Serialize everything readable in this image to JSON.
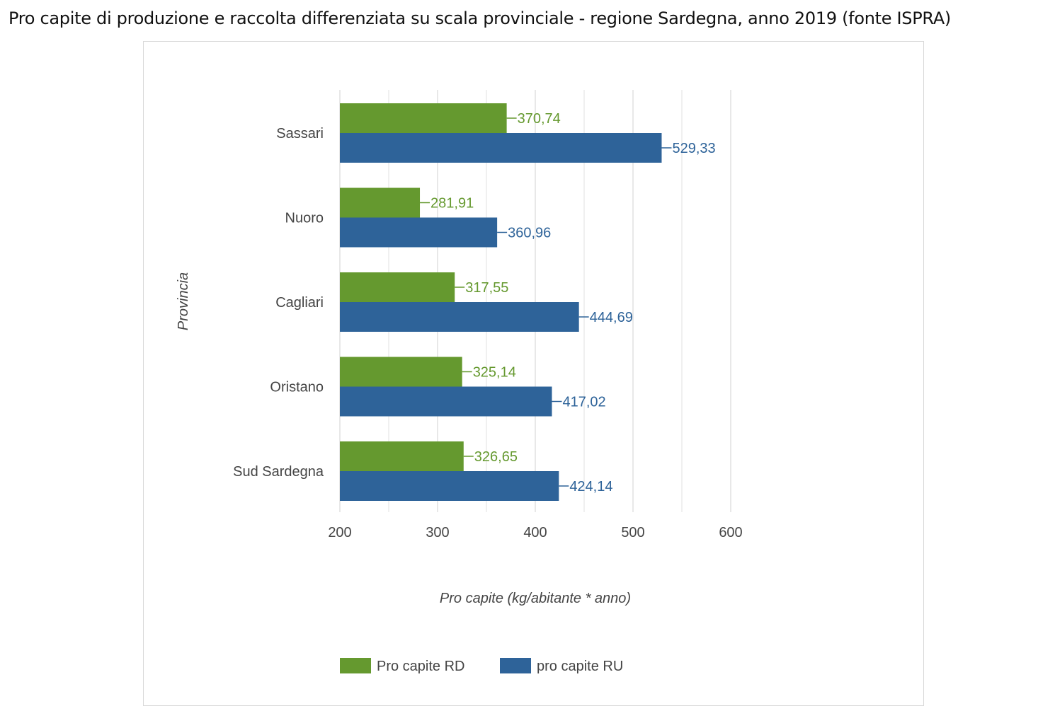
{
  "page_title": "Pro capite di produzione e raccolta differenziata su scala provinciale - regione Sardegna, anno 2019 (fonte ISPRA)",
  "colors": {
    "rd": "#65992f",
    "ru": "#2e6399",
    "grid": "#d9d9d9",
    "axis_text": "#444444"
  },
  "chart_data": {
    "type": "bar",
    "orientation": "horizontal",
    "categories": [
      "Sassari",
      "Nuoro",
      "Cagliari",
      "Oristano",
      "Sud Sardegna"
    ],
    "series": [
      {
        "name": "Pro capite RD",
        "color": "#65992f",
        "values": [
          370.74,
          281.91,
          317.55,
          325.14,
          326.65
        ],
        "labels": [
          "370,74",
          "281,91",
          "317,55",
          "325,14",
          "326,65"
        ]
      },
      {
        "name": "pro capite RU",
        "color": "#2e6399",
        "values": [
          529.33,
          360.96,
          444.69,
          417.02,
          424.14
        ],
        "labels": [
          "529,33",
          "360,96",
          "444,69",
          "417,02",
          "424,14"
        ]
      }
    ],
    "xlim": [
      200,
      600
    ],
    "xticks": [
      "200",
      "300",
      "400",
      "500",
      "600"
    ],
    "xlabel": "Pro capite (kg/abitante * anno)",
    "ylabel": "Provincia",
    "grid": true,
    "legend": "bottom"
  }
}
